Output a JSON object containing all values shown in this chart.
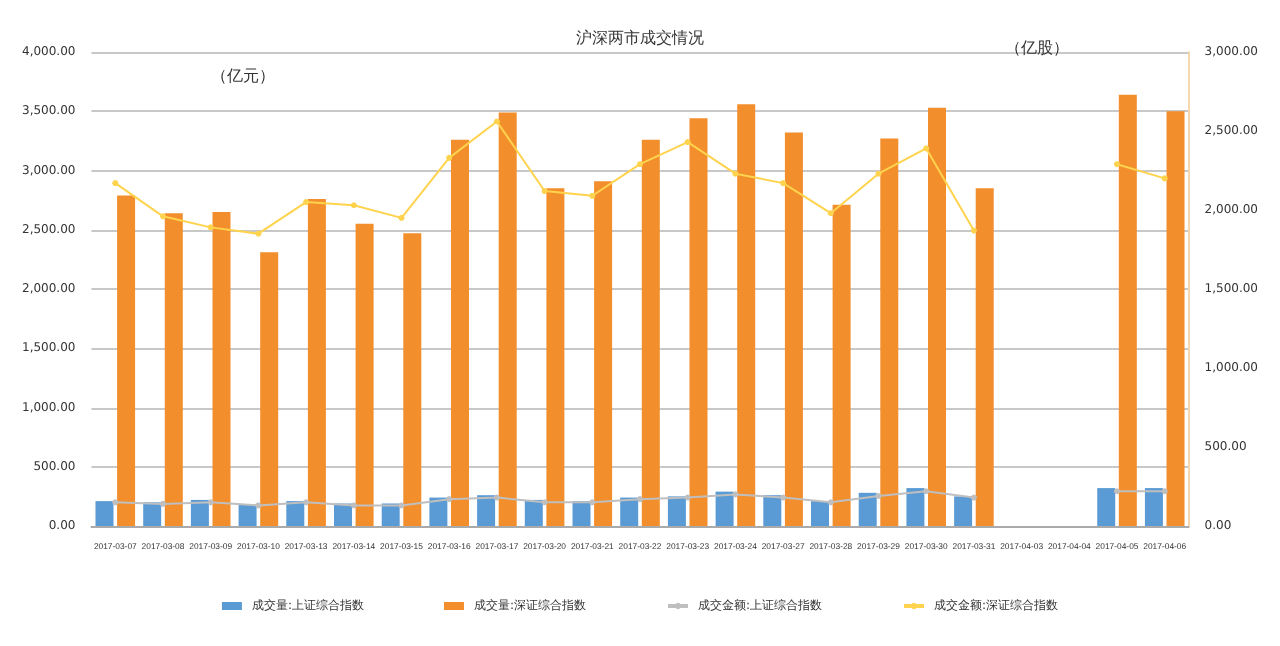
{
  "chart_data": {
    "type": "bar",
    "title": "沪深两市成交情况",
    "ylabel": "（亿元）",
    "y2label": "（亿股）",
    "categories": [
      "2017-03-07",
      "2017-03-08",
      "2017-03-09",
      "2017-03-10",
      "2017-03-13",
      "2017-03-14",
      "2017-03-15",
      "2017-03-16",
      "2017-03-17",
      "2017-03-20",
      "2017-03-21",
      "2017-03-22",
      "2017-03-23",
      "2017-03-24",
      "2017-03-27",
      "2017-03-28",
      "2017-03-29",
      "2017-03-30",
      "2017-03-31",
      "2017-04-03",
      "2017-04-04",
      "2017-04-05",
      "2017-04-06"
    ],
    "series": [
      {
        "name": "成交量:上证综合指数",
        "color": "#5b9bd5",
        "values": [
          210,
          200,
          220,
          180,
          210,
          190,
          190,
          240,
          260,
          220,
          210,
          240,
          250,
          290,
          260,
          210,
          280,
          320,
          250,
          null,
          null,
          320,
          320
        ]
      },
      {
        "name": "成交量:深证综合指数",
        "color": "#f28e2b",
        "values": [
          2790,
          2640,
          2650,
          2310,
          2760,
          2550,
          2470,
          3260,
          3490,
          2850,
          2910,
          3260,
          3440,
          3560,
          3320,
          2710,
          3270,
          3530,
          2850,
          null,
          null,
          3640,
          3500
        ]
      },
      {
        "name": "成交金额:上证综合指数",
        "type": "line",
        "axis": "y2",
        "color": "#bfbfbf",
        "values": [
          150,
          140,
          150,
          130,
          150,
          130,
          130,
          170,
          180,
          150,
          150,
          170,
          180,
          200,
          180,
          150,
          190,
          220,
          180,
          null,
          null,
          220,
          220
        ]
      },
      {
        "name": "成交金额:深证综合指数",
        "type": "line",
        "axis": "y2",
        "color": "#ffd34d",
        "values": [
          2170,
          1960,
          1890,
          1850,
          2050,
          2030,
          1950,
          2330,
          2560,
          2120,
          2090,
          2290,
          2430,
          2230,
          2170,
          1980,
          2230,
          2390,
          1870,
          null,
          null,
          2290,
          2200
        ]
      }
    ],
    "ylim": [
      0,
      4000
    ],
    "yticks": [
      {
        "value": 0,
        "label": "0.00"
      },
      {
        "value": 500,
        "label": "500.00"
      },
      {
        "value": 1000,
        "label": "1,000.00"
      },
      {
        "value": 1500,
        "label": "1,500.00"
      },
      {
        "value": 2000,
        "label": "2,000.00"
      },
      {
        "value": 2500,
        "label": "2,500.00"
      },
      {
        "value": 3000,
        "label": "3,000.00"
      },
      {
        "value": 3500,
        "label": "3,500.00"
      },
      {
        "value": 4000,
        "label": "4,000.00"
      }
    ],
    "y2lim": [
      0,
      3000
    ],
    "y2ticks": [
      {
        "value": 0,
        "label": "0.00"
      },
      {
        "value": 500,
        "label": "500.00"
      },
      {
        "value": 1000,
        "label": "1,000.00"
      },
      {
        "value": 1500,
        "label": "1,500.00"
      },
      {
        "value": 2000,
        "label": "2,000.00"
      },
      {
        "value": 2500,
        "label": "2,500.00"
      },
      {
        "value": 3000,
        "label": "3,000.00"
      }
    ],
    "grid": "y",
    "legend": "bottom",
    "marker": "circle",
    "line_style": "solid"
  }
}
